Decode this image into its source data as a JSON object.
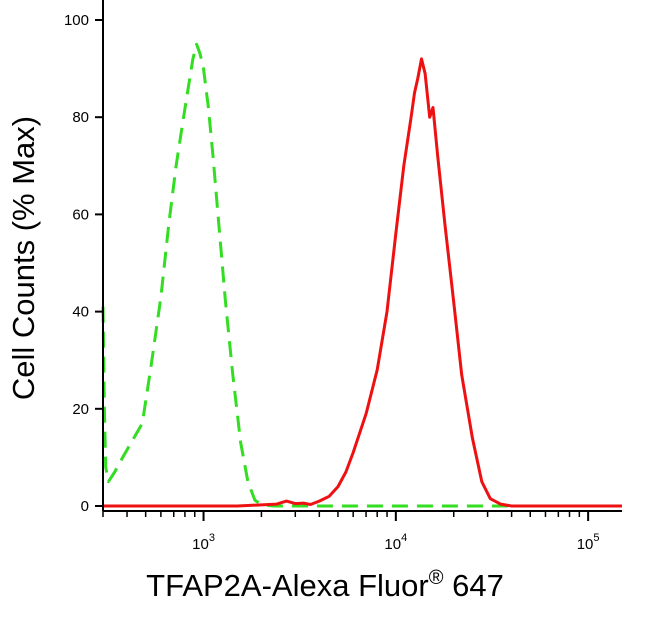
{
  "chart_data": {
    "type": "line",
    "xlabel": "TFAP2A-Alexa Fluor",
    "xlabel_mark": "®",
    "xlabel_suffix": " 647",
    "ylabel": "Cell Counts (% Max)",
    "x_scale": "log",
    "xlim": [
      300,
      150000
    ],
    "ylim": [
      0,
      100
    ],
    "grid": false,
    "y_ticks": [
      {
        "value": 0,
        "label": "0"
      },
      {
        "value": 20,
        "label": "20"
      },
      {
        "value": 40,
        "label": "40"
      },
      {
        "value": 60,
        "label": "60"
      },
      {
        "value": 80,
        "label": "80"
      },
      {
        "value": 100,
        "label": "100"
      }
    ],
    "x_ticks": [
      {
        "value": 1000,
        "base": "10",
        "exp": "3"
      },
      {
        "value": 10000,
        "base": "10",
        "exp": "4"
      },
      {
        "value": 100000,
        "base": "10",
        "exp": "5"
      }
    ],
    "series": [
      {
        "style": "dashed",
        "color": "#33dd22",
        "x": [
          300,
          305,
          310,
          320,
          345,
          380,
          420,
          480,
          530,
          600,
          660,
          720,
          780,
          840,
          880,
          920,
          960,
          1000,
          1060,
          1120,
          1200,
          1300,
          1420,
          1560,
          1700,
          1850,
          2000,
          2300,
          3000,
          5000,
          10000,
          30000,
          150000
        ],
        "y": [
          41,
          20,
          8,
          5,
          7,
          10,
          13,
          17,
          28,
          43,
          58,
          70,
          79,
          87,
          92,
          95,
          93,
          90,
          82,
          72,
          58,
          42,
          27,
          13,
          5,
          1.2,
          0.3,
          0,
          0,
          0,
          0,
          0,
          0
        ]
      },
      {
        "style": "solid",
        "color": "#ee1111",
        "x": [
          300,
          1500,
          2400,
          2700,
          3000,
          3300,
          3600,
          4000,
          4500,
          5000,
          5500,
          6000,
          7000,
          8000,
          9000,
          10000,
          11000,
          12000,
          12500,
          13000,
          13600,
          14200,
          15000,
          15600,
          16500,
          18000,
          20000,
          22000,
          25000,
          28000,
          31000,
          35000,
          40000,
          50000,
          150000
        ],
        "y": [
          0,
          0,
          0.4,
          1,
          0.5,
          0.6,
          0.3,
          1,
          2,
          4,
          7,
          11,
          19,
          28,
          40,
          56,
          70,
          80,
          85,
          88,
          92,
          89,
          80,
          82,
          72,
          58,
          42,
          27,
          14,
          5,
          1.5,
          0.4,
          0,
          0,
          0
        ]
      }
    ]
  }
}
